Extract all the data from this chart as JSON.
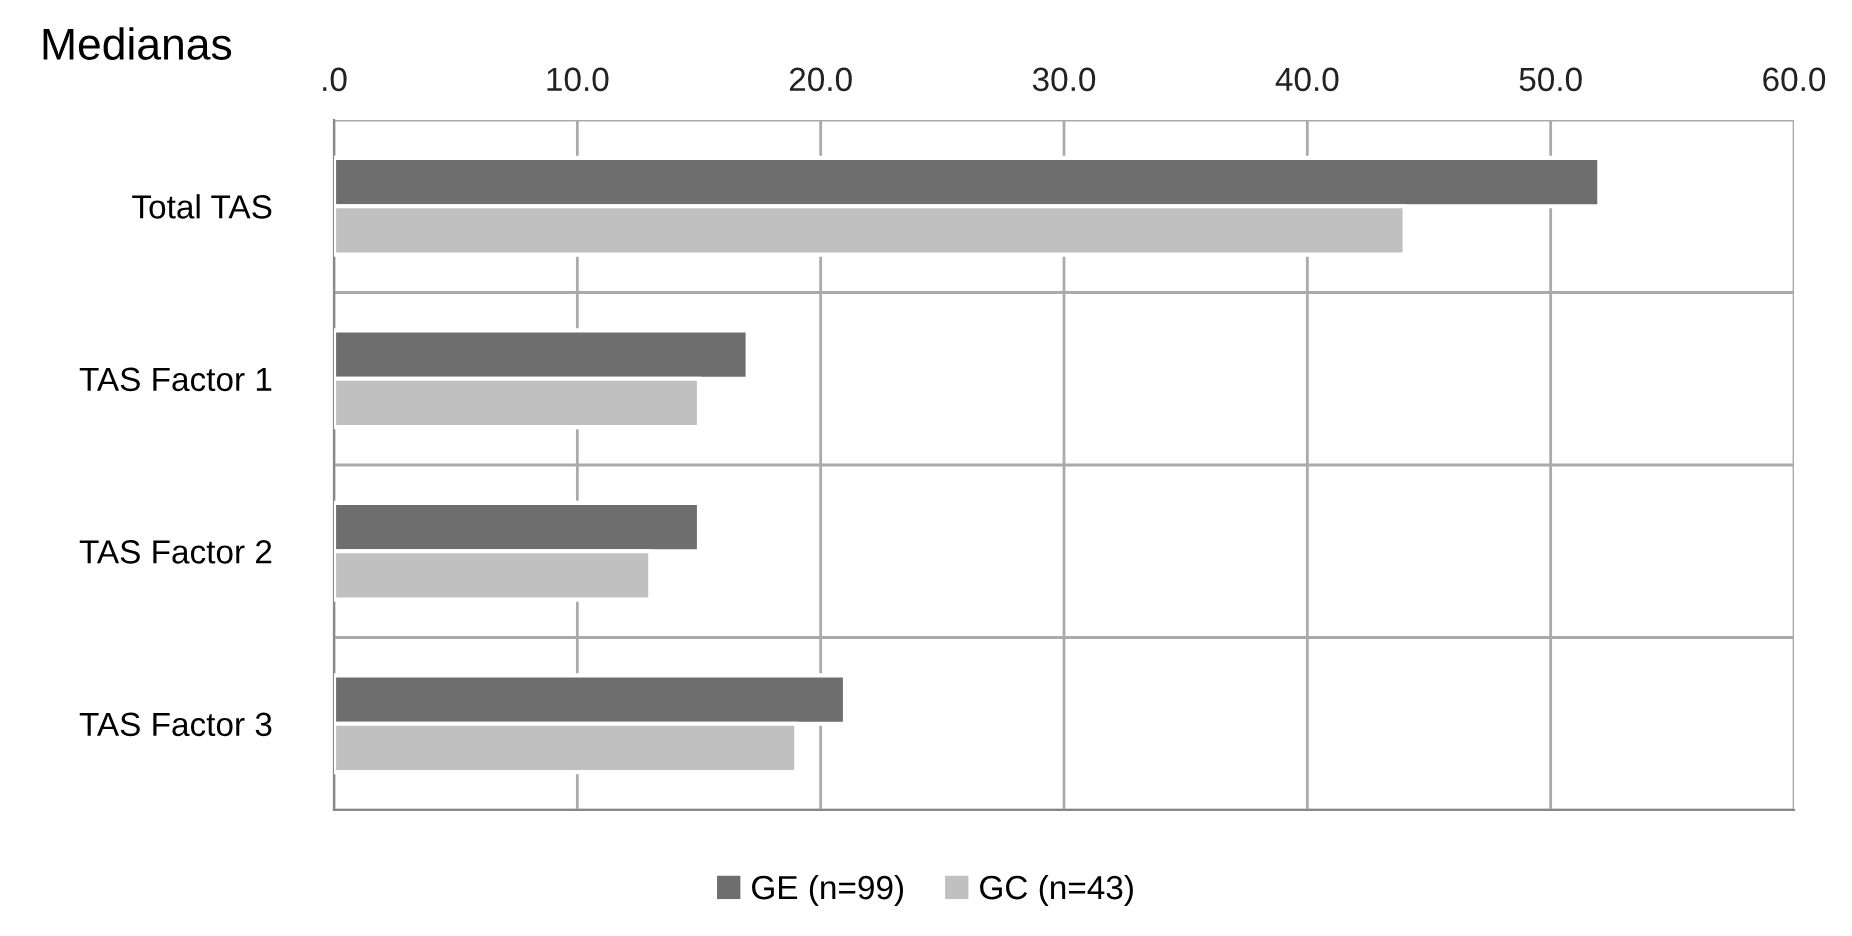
{
  "chart_data": {
    "type": "bar",
    "orientation": "horizontal",
    "title": "Medianas",
    "categories": [
      "Total TAS",
      "TAS Factor 1",
      "TAS Factor 2",
      "TAS Factor 3"
    ],
    "series": [
      {
        "name": "GE (n=99)",
        "color": "#6e6e6e",
        "values": [
          52,
          17,
          15,
          21
        ]
      },
      {
        "name": "GC (n=43)",
        "color": "#c0c0c0",
        "values": [
          44,
          15,
          13,
          19
        ]
      }
    ],
    "xlim": [
      0,
      60
    ],
    "xticks": [
      {
        "value": 0,
        "label": ".0"
      },
      {
        "value": 10,
        "label": "10.0"
      },
      {
        "value": 20,
        "label": "20.0"
      },
      {
        "value": 30,
        "label": "30.0"
      },
      {
        "value": 40,
        "label": "40.0"
      },
      {
        "value": 50,
        "label": "50.0"
      },
      {
        "value": 60,
        "label": "60.0"
      }
    ],
    "grid": true,
    "legend": "bottom"
  }
}
